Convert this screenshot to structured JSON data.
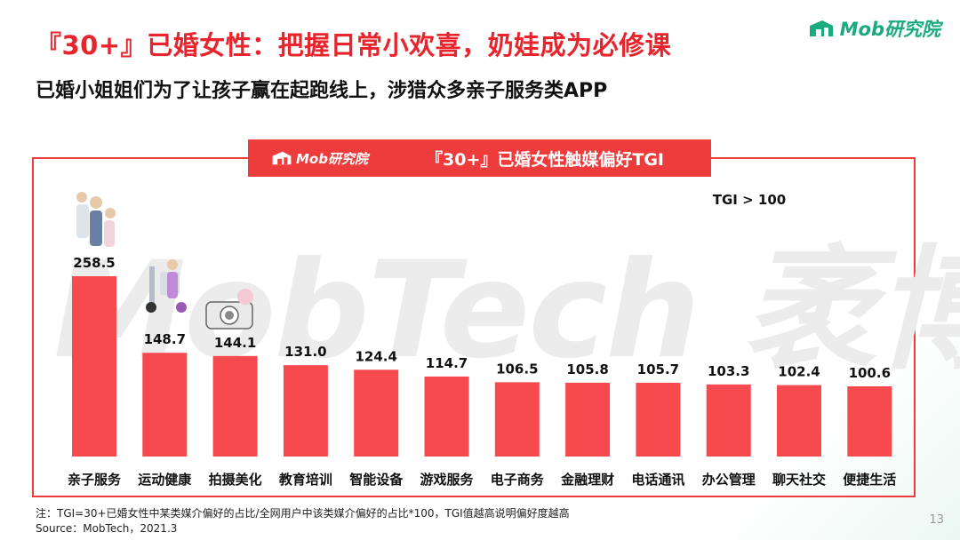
{
  "headline": "『30+』已婚女性：把握日常小欢喜，奶娃成为必修课",
  "subhead": "已婚小姐姐们为了让孩子赢在起跑线上，涉猎众多亲子服务类APP",
  "brand": {
    "logo_text": "Mob研究院",
    "color": "#1aaa7f"
  },
  "chart_header": {
    "logo_text": "Mob研究院",
    "title": "『30+』已婚女性触媒偏好TGI",
    "color": "#ee3b3b"
  },
  "watermark": "MobTech 袤博",
  "chart_data": {
    "type": "bar",
    "title": "『30+』已婚女性触媒偏好TGI",
    "categories": [
      "亲子服务",
      "运动健康",
      "拍摄美化",
      "教育培训",
      "智能设备",
      "游戏服务",
      "电子商务",
      "金融理财",
      "电话通讯",
      "办公管理",
      "聊天社交",
      "便捷生活"
    ],
    "values": [
      258.5,
      148.7,
      144.1,
      131.0,
      124.4,
      114.7,
      106.5,
      105.8,
      105.7,
      103.3,
      102.4,
      100.6
    ],
    "value_labels": [
      "258.5",
      "148.7",
      "144.1",
      "131.0",
      "124.4",
      "114.7",
      "106.5",
      "105.8",
      "105.7",
      "103.3",
      "102.4",
      "100.6"
    ],
    "annotation": "TGI > 100",
    "bar_color": "#f64a4f",
    "grid": false,
    "legend": "none",
    "ylim": [
      0,
      258.5
    ]
  },
  "notes": {
    "note": "注：TGI=30+已婚女性中某类媒介偏好的占比/全网用户中该类媒介偏好的占比*100，TGI值越高说明偏好度越高",
    "source": "Source：MobTech，2021.3"
  },
  "page_number": "13"
}
